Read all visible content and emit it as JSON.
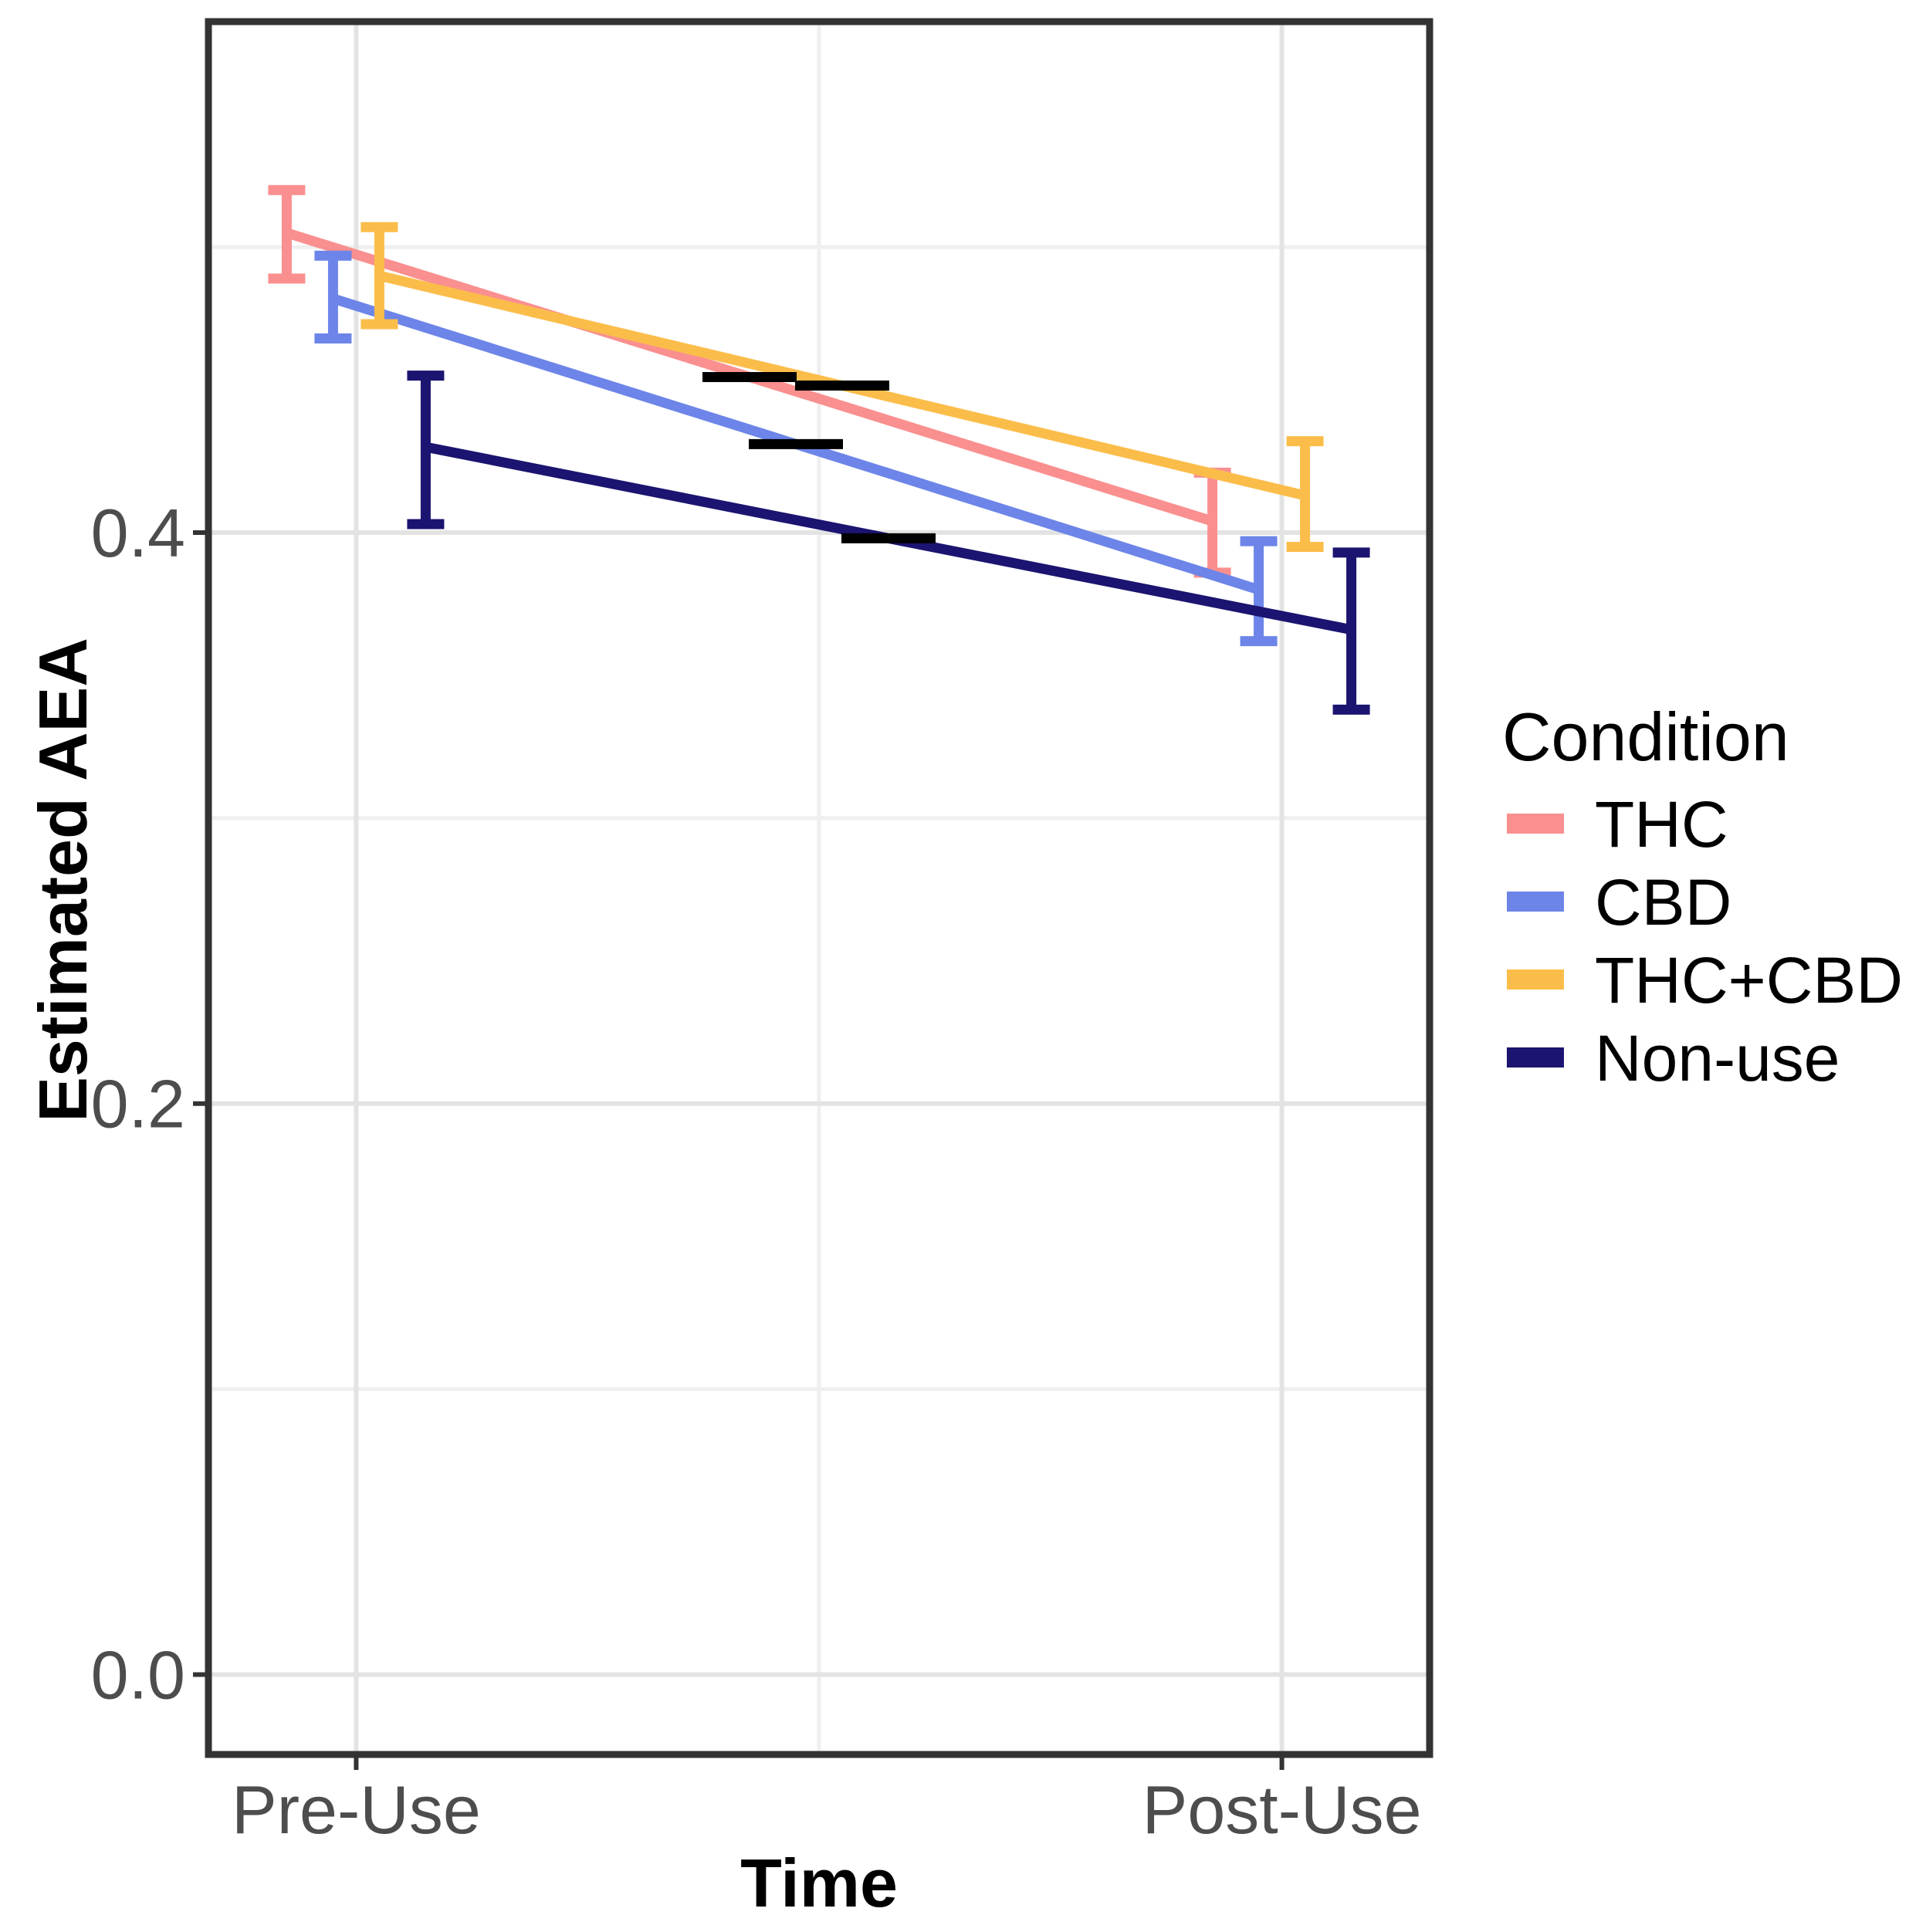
{
  "chart_data": {
    "type": "line",
    "title": "",
    "xlabel": "Time",
    "ylabel": "Estimated AEA",
    "categories": [
      "Pre-Use",
      "Post-Use"
    ],
    "y_tick_labels": [
      "0.0",
      "0.2",
      "0.4"
    ],
    "y_tick_values": [
      0.0,
      0.2,
      0.4
    ],
    "y_minor_values": [
      0.1,
      0.3,
      0.5
    ],
    "ylim": [
      -0.028,
      0.579
    ],
    "grid": "major+minor, light gray on white",
    "legend_position": "right",
    "legend_title": "Condition",
    "error_bars": "vertical interval with flat caps at each point",
    "midpoint_dash": "short black horizontal dash at the midpoint of each line",
    "series": [
      {
        "name": "THC",
        "color": "#FA8F8F",
        "values": [
          0.505,
          0.404
        ],
        "ci_low": [
          0.489,
          0.386
        ],
        "ci_high": [
          0.52,
          0.421
        ]
      },
      {
        "name": "CBD",
        "color": "#6D85E8",
        "values": [
          0.482,
          0.38
        ],
        "ci_low": [
          0.468,
          0.362
        ],
        "ci_high": [
          0.497,
          0.397
        ]
      },
      {
        "name": "THC+CBD",
        "color": "#FBBD4A",
        "values": [
          0.49,
          0.413
        ],
        "ci_low": [
          0.473,
          0.395
        ],
        "ci_high": [
          0.507,
          0.432
        ]
      },
      {
        "name": "Non-use",
        "color": "#1B1470",
        "values": [
          0.43,
          0.366
        ],
        "ci_low": [
          0.403,
          0.338
        ],
        "ci_high": [
          0.455,
          0.393
        ]
      }
    ]
  },
  "colors": {
    "background": "#FFFFFF",
    "panel_border": "#333333",
    "axis_tick": "#333333",
    "tick_label": "#4D4D4D",
    "axis_title": "#000000",
    "legend_text": "#000000",
    "grid_major": "#E3E3E3",
    "grid_minor": "#EFEFEF",
    "midpoint_dash": "#000000"
  }
}
